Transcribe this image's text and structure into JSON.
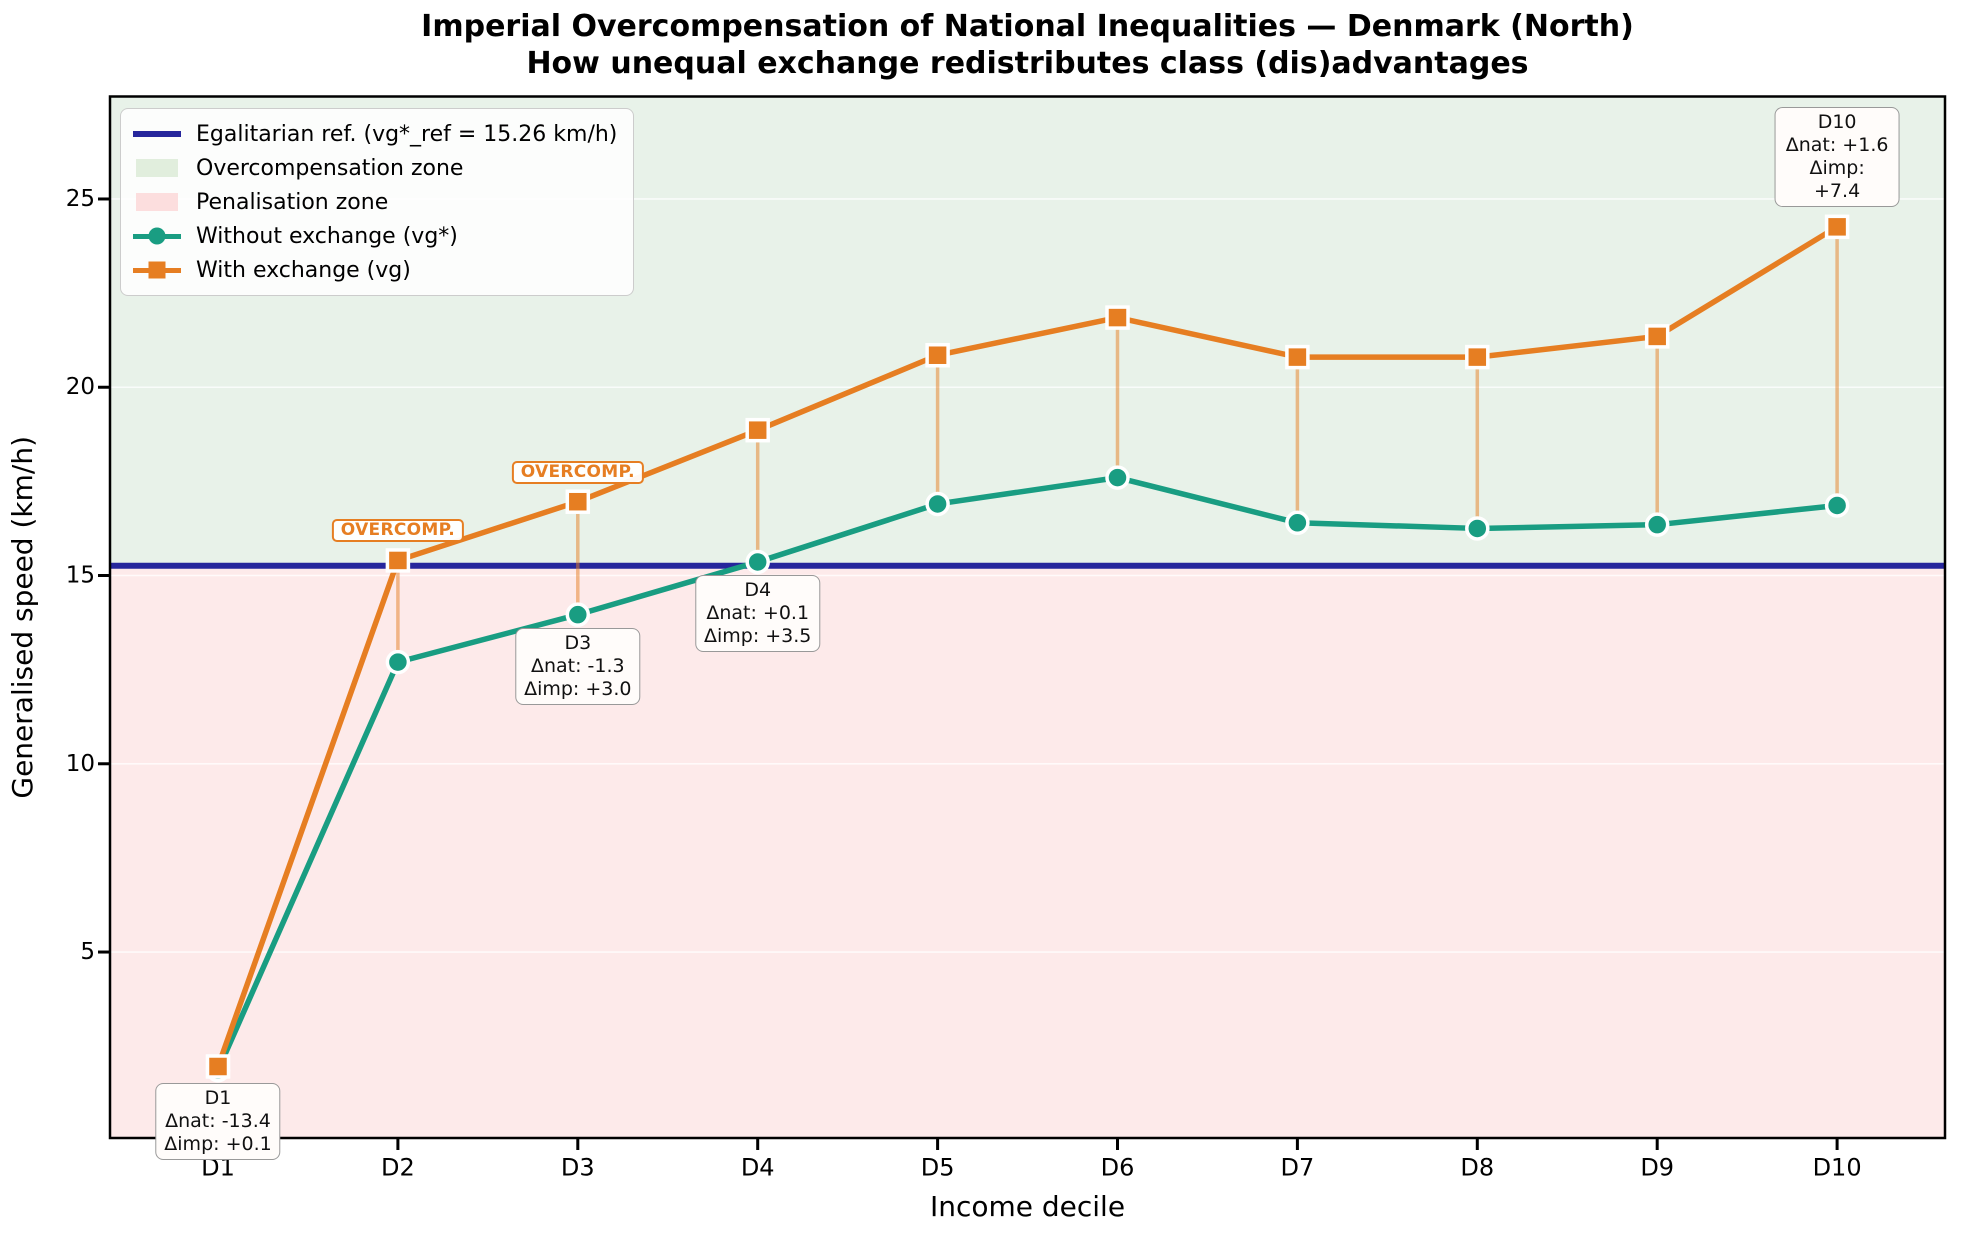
{
  "title": "Imperial Overcompensation of National Inequalities — Denmark (North)",
  "subtitle": "How unequal exchange redistributes class (dis)advantages",
  "colors": {
    "reference_line": "#26269c",
    "overcompensation_zone": "#e8f2e9",
    "penalisation_zone": "#fdeaea",
    "without_exchange": "#199d82",
    "with_exchange": "#e67e22",
    "grid": "rgba(255,255,255,0.75)",
    "spine": "#000000"
  },
  "chart_data": {
    "type": "line",
    "title": "Imperial Overcompensation of National Inequalities — Denmark (North)",
    "subtitle": "How unequal exchange redistributes class (dis)advantages",
    "xlabel": "Income decile",
    "ylabel": "Generalised speed (km/h)",
    "categories": [
      "D1",
      "D2",
      "D3",
      "D4",
      "D5",
      "D6",
      "D7",
      "D8",
      "D9",
      "D10"
    ],
    "yticks": [
      5,
      10,
      15,
      20,
      25
    ],
    "ylim": [
      0,
      27.7
    ],
    "grid": "horizontal",
    "legend_position": "upper left",
    "reference": {
      "label": "Egalitarian ref. (vg*_ref = 15.26 km/h)",
      "value": 15.26
    },
    "zones": [
      {
        "label": "Overcompensation zone",
        "position": "above_reference"
      },
      {
        "label": "Penalisation zone",
        "position": "below_reference"
      }
    ],
    "series": [
      {
        "name": "Without exchange (vg*)",
        "marker": "circle",
        "values": [
          1.86,
          12.7,
          13.96,
          15.36,
          16.9,
          17.6,
          16.4,
          16.25,
          16.35,
          16.86
        ]
      },
      {
        "name": "With exchange (vg)",
        "marker": "square",
        "values": [
          1.96,
          15.4,
          16.96,
          18.86,
          20.85,
          21.85,
          20.8,
          20.8,
          21.35,
          24.26
        ]
      }
    ],
    "annotations": [
      {
        "decile": "D1",
        "lines": [
          "D1",
          "Δnat: -13.4",
          "Δimp: +0.1"
        ],
        "position": "below"
      },
      {
        "decile": "D3",
        "lines": [
          "D3",
          "Δnat: -1.3",
          "Δimp: +3.0"
        ],
        "position": "below"
      },
      {
        "decile": "D4",
        "lines": [
          "D4",
          "Δnat: +0.1",
          "Δimp: +3.5"
        ],
        "position": "below"
      },
      {
        "decile": "D10",
        "lines": [
          "D10",
          "Δnat: +1.6",
          "Δimp: +7.4"
        ],
        "position": "above"
      }
    ],
    "overcomp_labels": [
      {
        "decile": "D2",
        "text": "OVERCOMP."
      },
      {
        "decile": "D3",
        "text": "OVERCOMP."
      }
    ]
  }
}
